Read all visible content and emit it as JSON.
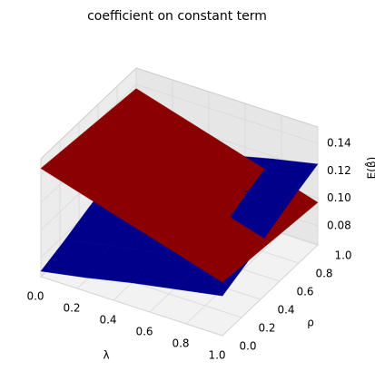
{
  "chart_data": {
    "type": "surface3d",
    "title": "coefficient on constant term",
    "xlabel": "λ",
    "ylabel": "ρ",
    "zlabel": "E(β̂)",
    "x": [
      0,
      0.25,
      0.5,
      0.75,
      1
    ],
    "y": [
      0,
      0.25,
      0.5,
      0.75,
      1
    ],
    "xlim": [
      0,
      1
    ],
    "ylim": [
      0,
      1
    ],
    "zlim": [
      0.066,
      0.152
    ],
    "xticks": [
      {
        "value": 0,
        "label": "0.0"
      },
      {
        "value": 0.2,
        "label": "0.2"
      },
      {
        "value": 0.4,
        "label": "0.4"
      },
      {
        "value": 0.6,
        "label": "0.6"
      },
      {
        "value": 0.8,
        "label": "0.8"
      },
      {
        "value": 1,
        "label": "1.0"
      }
    ],
    "yticks": [
      {
        "value": 0,
        "label": "0.0"
      },
      {
        "value": 0.2,
        "label": "0.2"
      },
      {
        "value": 0.4,
        "label": "0.4"
      },
      {
        "value": 0.6,
        "label": "0.6"
      },
      {
        "value": 0.8,
        "label": "0.8"
      },
      {
        "value": 1,
        "label": "1.0"
      }
    ],
    "zticks": [
      0.08,
      {
        "value": 0.1,
        "label": "0.10"
      },
      0.12,
      0.14
    ],
    "grid": true,
    "series": [
      {
        "color": "#00008b",
        "z": [
          [
            0.07,
            0.076,
            0.083,
            0.089,
            0.095
          ],
          [
            0.076,
            0.083,
            0.089,
            0.096,
            0.102
          ],
          [
            0.083,
            0.089,
            0.096,
            0.103,
            0.11
          ],
          [
            0.089,
            0.096,
            0.103,
            0.111,
            0.118
          ],
          [
            0.095,
            0.103,
            0.11,
            0.118,
            0.125
          ]
        ]
      },
      {
        "color": "#8b0000",
        "z": [
          [
            0.145,
            0.135,
            0.125,
            0.115,
            0.105
          ],
          [
            0.143,
            0.133,
            0.123,
            0.113,
            0.103
          ],
          [
            0.141,
            0.131,
            0.121,
            0.111,
            0.101
          ],
          [
            0.139,
            0.129,
            0.119,
            0.109,
            0.099
          ],
          [
            0.137,
            0.127,
            0.117,
            0.107,
            0.097
          ]
        ]
      }
    ]
  }
}
